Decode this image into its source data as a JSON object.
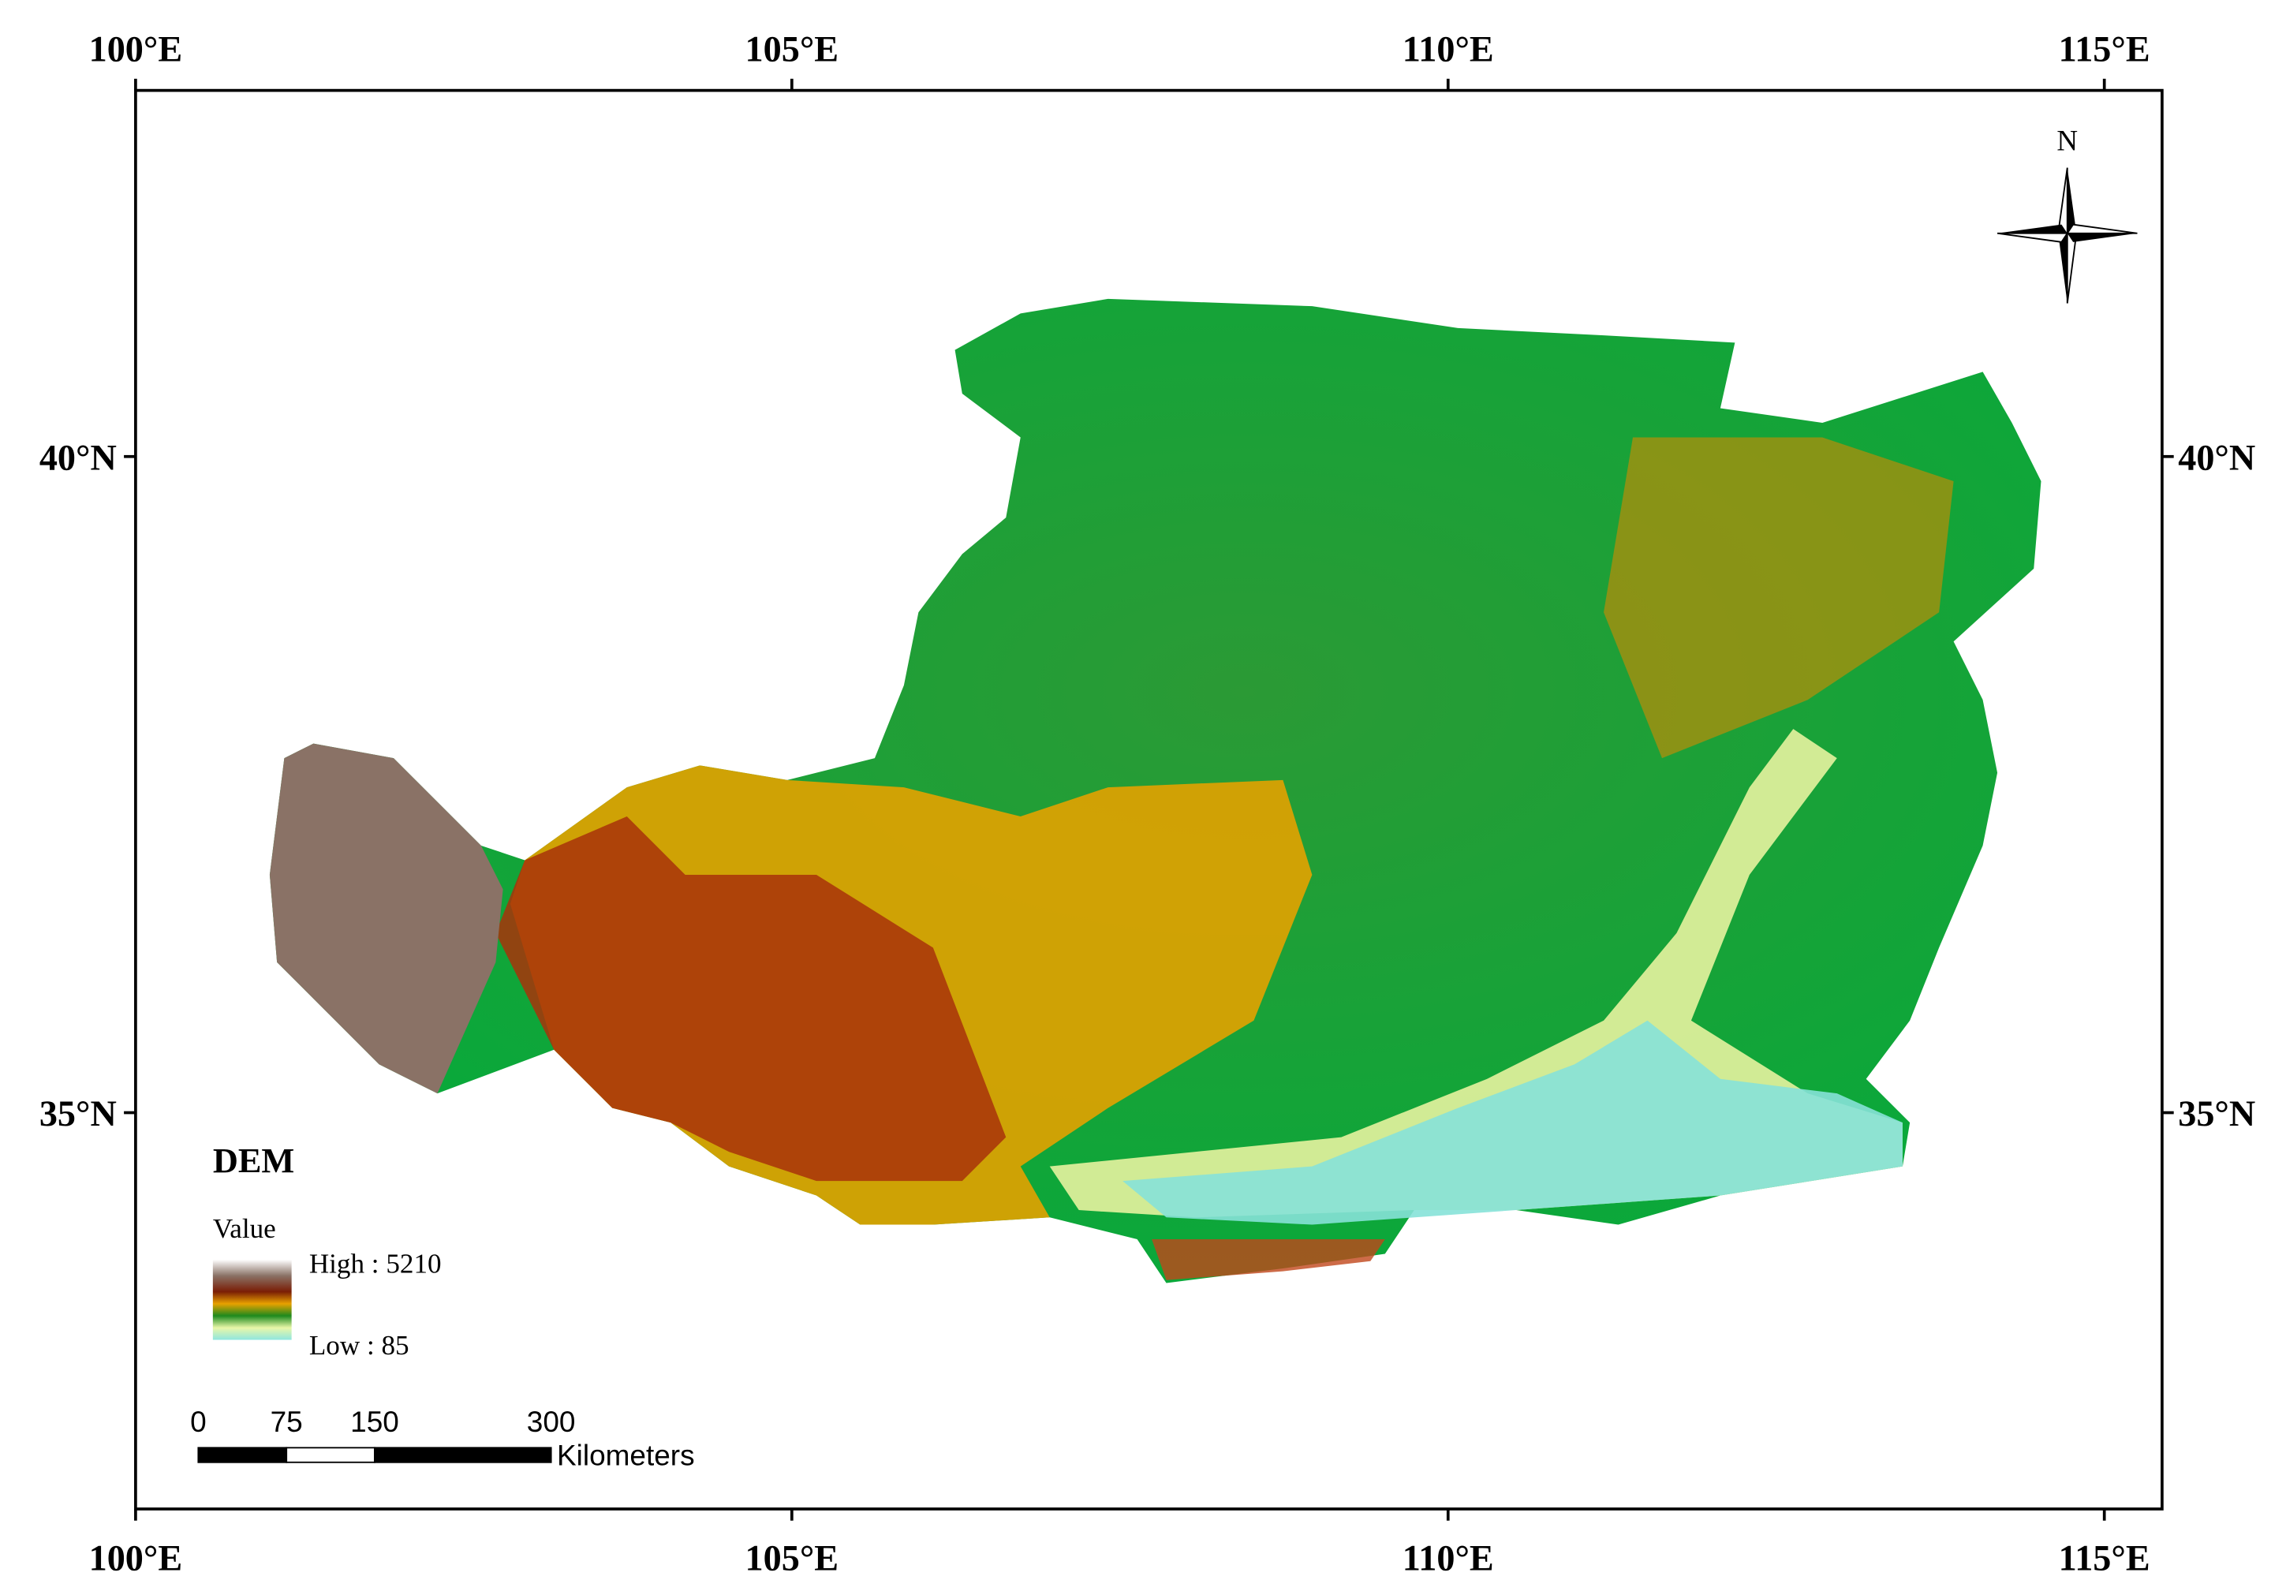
{
  "map": {
    "lon_ticks": [
      {
        "value": 100,
        "label": "100°E"
      },
      {
        "value": 105,
        "label": "105°E"
      },
      {
        "value": 110,
        "label": "110°E"
      },
      {
        "value": 115,
        "label": "115°E"
      }
    ],
    "lat_ticks": [
      {
        "value": 40,
        "label": "40°N"
      },
      {
        "value": 35,
        "label": "35°N"
      }
    ],
    "xlim": [
      100,
      115.44
    ],
    "ylim": [
      31.98,
      42.79
    ],
    "north": "N",
    "legend": {
      "title": "DEM",
      "field": "Value",
      "high": "High : 5210",
      "low": "Low : 85"
    },
    "scale_bar": {
      "ticks": [
        0,
        75,
        150,
        300
      ],
      "unit": "Kilometers"
    }
  }
}
